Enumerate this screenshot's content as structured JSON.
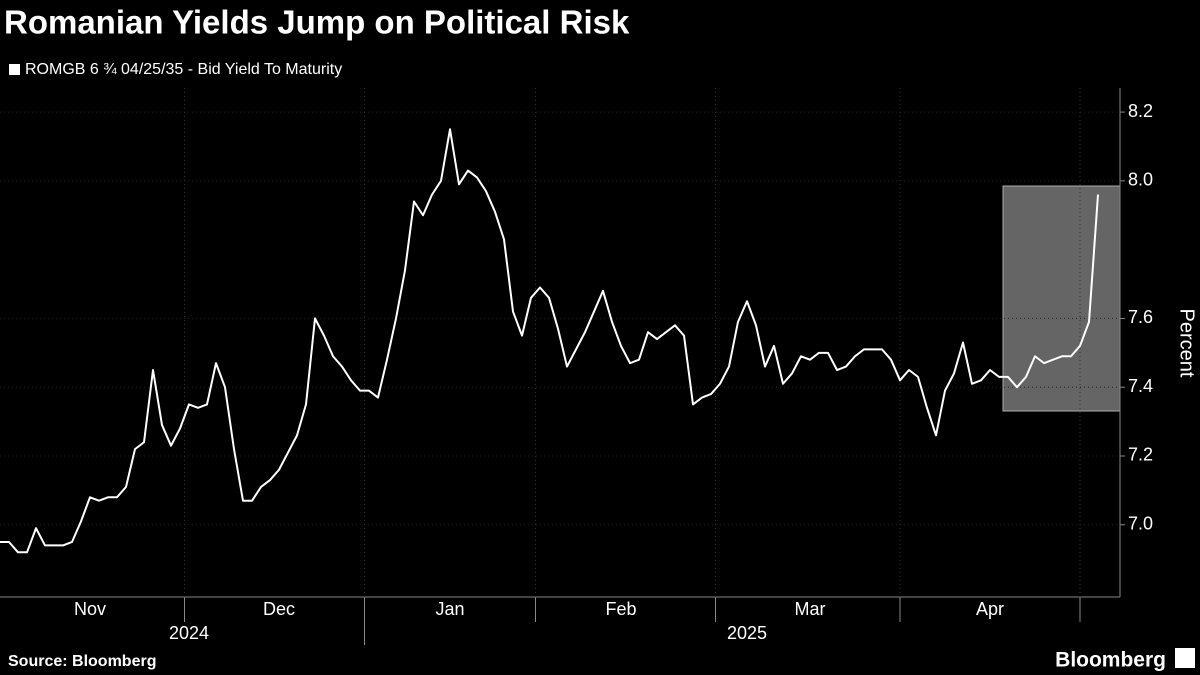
{
  "chart_data": {
    "type": "line",
    "title": "Romanian Yields Jump on Political Risk",
    "y_label": "Percent",
    "source": "Source: Bloomberg",
    "brand": "Bloomberg",
    "categories": [
      null,
      null,
      null,
      null,
      null,
      null,
      null,
      null,
      null,
      null,
      "Nov",
      null,
      null,
      null,
      null,
      null,
      null,
      null,
      null,
      null,
      null,
      null,
      null,
      null,
      null,
      null,
      null,
      null,
      null,
      null,
      null,
      "Dec",
      null,
      null,
      null,
      null,
      null,
      null,
      null,
      null,
      null,
      null,
      null,
      null,
      null,
      null,
      null,
      null,
      null,
      null,
      "Jan",
      null,
      null,
      null,
      null,
      null,
      null,
      null,
      null,
      null,
      null,
      null,
      null,
      null,
      null,
      null,
      null,
      null,
      null,
      "Feb",
      null,
      null,
      null,
      null,
      null,
      null,
      null,
      null,
      null,
      null,
      null,
      null,
      null,
      null,
      null,
      null,
      null,
      null,
      null,
      null,
      "Mar",
      null,
      null,
      null,
      null,
      null,
      null,
      null,
      null,
      null,
      null,
      null,
      null,
      null,
      null,
      null,
      null,
      null,
      null,
      null,
      "Apr",
      null,
      null,
      null,
      null,
      null,
      null,
      null,
      null,
      null,
      null,
      null,
      null
    ],
    "year_categories": [
      null,
      null,
      null,
      null,
      null,
      null,
      null,
      null,
      null,
      null,
      null,
      null,
      null,
      null,
      null,
      null,
      null,
      null,
      null,
      null,
      null,
      "2024",
      null,
      null,
      null,
      null,
      null,
      null,
      null,
      null,
      null,
      null,
      null,
      null,
      null,
      null,
      null,
      null,
      null,
      null,
      null,
      null,
      null,
      null,
      null,
      null,
      null,
      null,
      null,
      null,
      null,
      null,
      null,
      null,
      null,
      null,
      null,
      null,
      null,
      null,
      null,
      null,
      null,
      null,
      null,
      null,
      null,
      null,
      null,
      null,
      null,
      null,
      null,
      null,
      null,
      null,
      null,
      null,
      null,
      null,
      null,
      null,
      null,
      "2025",
      null,
      null,
      null,
      null,
      null,
      null,
      null,
      null,
      null,
      null,
      null,
      null,
      null,
      null,
      null,
      null,
      null,
      null,
      null,
      null,
      null,
      null,
      null,
      null,
      null,
      null,
      null,
      null,
      null,
      null,
      null,
      null,
      null,
      null,
      null,
      null,
      null,
      null,
      null
    ],
    "series": [
      {
        "name": "ROMGB 6 ¾ 04/25/35 - Bid Yield To Maturity",
        "color": "#ffffff",
        "values": [
          6.95,
          6.95,
          6.92,
          6.92,
          6.99,
          6.94,
          6.94,
          6.94,
          6.95,
          7.01,
          7.08,
          7.07,
          7.08,
          7.08,
          7.11,
          7.22,
          7.24,
          7.45,
          7.29,
          7.23,
          7.28,
          7.35,
          7.34,
          7.35,
          7.47,
          7.4,
          7.22,
          7.07,
          7.07,
          7.11,
          7.13,
          7.16,
          7.21,
          7.26,
          7.35,
          7.6,
          7.55,
          7.49,
          7.46,
          7.42,
          7.39,
          7.39,
          7.37,
          7.48,
          7.6,
          7.74,
          7.94,
          7.9,
          7.96,
          8.0,
          8.15,
          7.99,
          8.03,
          8.01,
          7.97,
          7.91,
          7.83,
          7.62,
          7.55,
          7.66,
          7.69,
          7.66,
          7.57,
          7.46,
          7.51,
          7.56,
          7.62,
          7.68,
          7.59,
          7.52,
          7.47,
          7.48,
          7.56,
          7.54,
          7.56,
          7.58,
          7.55,
          7.35,
          7.37,
          7.38,
          7.41,
          7.46,
          7.59,
          7.65,
          7.58,
          7.46,
          7.52,
          7.41,
          7.44,
          7.49,
          7.48,
          7.5,
          7.5,
          7.45,
          7.46,
          7.49,
          7.51,
          7.51,
          7.51,
          7.48,
          7.42,
          7.45,
          7.43,
          7.34,
          7.26,
          7.39,
          7.44,
          7.53,
          7.41,
          7.42,
          7.45,
          7.43,
          7.43,
          7.4,
          7.43,
          7.49,
          7.47,
          7.48,
          7.49,
          7.49,
          7.52,
          7.59,
          7.96
        ]
      }
    ],
    "ylim": [
      6.79,
      8.27
    ],
    "yticks": [
      {
        "value": 7,
        "label": "7.0"
      },
      7.2,
      7.4,
      7.6,
      {
        "value": 8,
        "label": "8.0"
      },
      8.2
    ],
    "grid": true
  }
}
